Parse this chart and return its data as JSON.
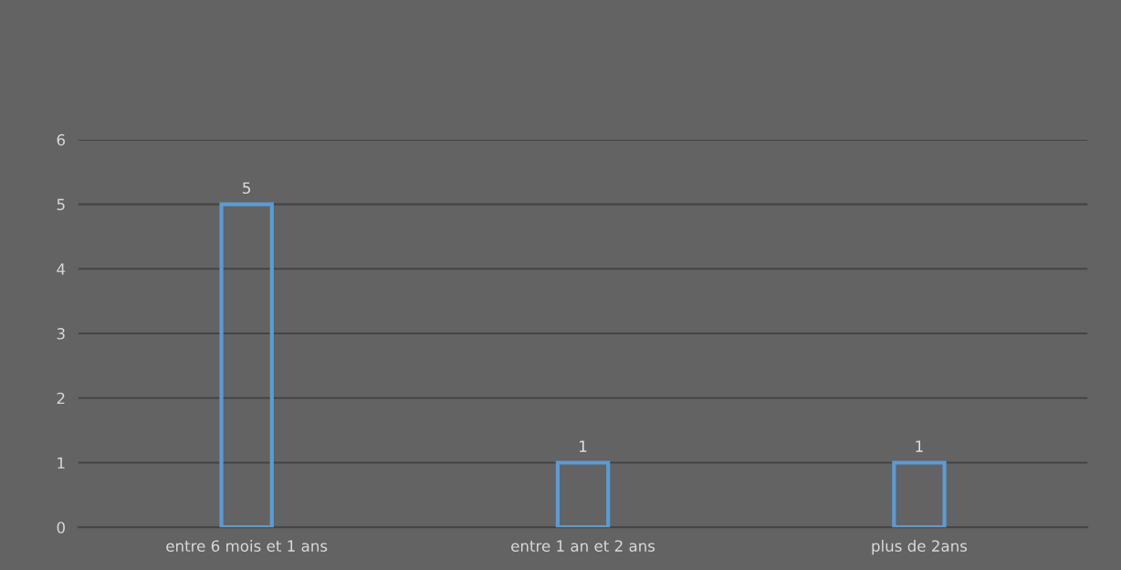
{
  "chart_data": {
    "type": "bar",
    "categories": [
      "entre 6 mois et 1 ans",
      "entre 1 an et 2 ans",
      "plus de 2ans"
    ],
    "values": [
      5,
      1,
      1
    ],
    "color": "#5b9bd5",
    "ylim": [
      0,
      6
    ],
    "yticks": [
      0,
      1,
      2,
      3,
      4,
      5,
      6
    ],
    "grid": "y",
    "data_labels": true
  }
}
